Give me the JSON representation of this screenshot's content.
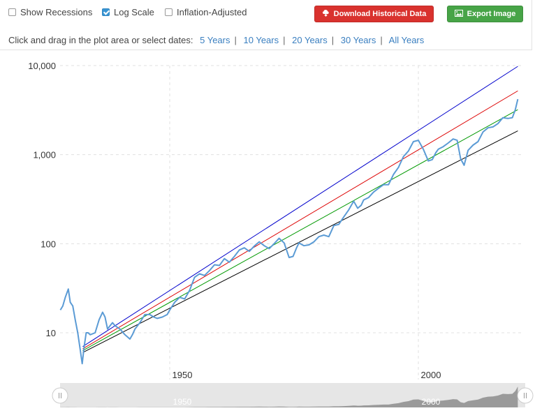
{
  "toolbar": {
    "show_recessions": "Show Recessions",
    "log_scale": "Log Scale",
    "inflation_adjusted": "Inflation-Adjusted",
    "download_label": "Download Historical Data",
    "export_label": "Export Image",
    "download_color": "#d9322e",
    "export_color": "#47a447"
  },
  "date_picker": {
    "prompt": "Click and drag in the plot area or select dates:",
    "ranges": [
      "5 Years",
      "10 Years",
      "20 Years",
      "30 Years",
      "All Years"
    ]
  },
  "icons": {
    "download": "cloud-download-icon",
    "export": "image-icon"
  },
  "chart_data": {
    "type": "line",
    "y_scale": "log",
    "ylim": [
      4,
      10000
    ],
    "xlim": [
      1928,
      2020
    ],
    "y_ticks": [
      10,
      100,
      1000,
      10000
    ],
    "y_tick_labels": [
      "10",
      "100",
      "1,000",
      "10,000"
    ],
    "x_ticks": [
      1950,
      2000
    ],
    "x_tick_labels": [
      "1950",
      "2000"
    ],
    "grid": true,
    "series": [
      {
        "color": "#5b9bd5",
        "x": [
          1928,
          1928.5,
          1929.0,
          1929.6,
          1930.0,
          1930.5,
          1931.0,
          1931.5,
          1932.0,
          1932.4,
          1932.8,
          1933.2,
          1933.6,
          1934.0,
          1935.0,
          1935.8,
          1936.5,
          1937.0,
          1937.5,
          1938.0,
          1938.5,
          1939.0,
          1940.0,
          1941.0,
          1942.0,
          1942.5,
          1943.0,
          1944.0,
          1945.0,
          1946.0,
          1946.8,
          1947.5,
          1948.5,
          1949.5,
          1950.0,
          1951.0,
          1952.0,
          1953.0,
          1954.0,
          1955.0,
          1956.0,
          1957.0,
          1958.0,
          1959.0,
          1960.0,
          1961.0,
          1962.0,
          1963.0,
          1964.0,
          1965.0,
          1966.0,
          1967.0,
          1968.0,
          1969.0,
          1970.0,
          1971.0,
          1972.0,
          1973.0,
          1974.0,
          1974.8,
          1975.5,
          1976.0,
          1977.0,
          1978.0,
          1979.0,
          1980.0,
          1981.0,
          1982.0,
          1983.0,
          1984.0,
          1985.0,
          1986.0,
          1987.0,
          1987.8,
          1988.5,
          1989.0,
          1990.0,
          1991.0,
          1992.0,
          1993.0,
          1994.0,
          1995.0,
          1996.0,
          1997.0,
          1998.0,
          1999.0,
          2000.0,
          2001.0,
          2002.0,
          2002.8,
          2003.5,
          2004.0,
          2005.0,
          2006.0,
          2007.0,
          2007.8,
          2008.5,
          2009.2,
          2010.0,
          2011.0,
          2012.0,
          2013.0,
          2014.0,
          2015.0,
          2016.0,
          2017.0,
          2018.0,
          2018.9,
          2019.5,
          2020.0
        ],
        "y": [
          18,
          20,
          25,
          31,
          22,
          20,
          14,
          10,
          6.5,
          4.5,
          7,
          10,
          10,
          9.5,
          10,
          14,
          17,
          15,
          11,
          12,
          13,
          12,
          11,
          9.5,
          8.5,
          9.5,
          11,
          13,
          16,
          16,
          15,
          14.5,
          15,
          16,
          18,
          22,
          25,
          24,
          30,
          42,
          46,
          44,
          50,
          58,
          57,
          68,
          62,
          72,
          85,
          90,
          82,
          94,
          105,
          95,
          88,
          100,
          115,
          102,
          70,
          72,
          90,
          102,
          95,
          97,
          105,
          120,
          125,
          120,
          160,
          165,
          200,
          240,
          300,
          250,
          270,
          310,
          330,
          380,
          420,
          460,
          460,
          600,
          720,
          950,
          1100,
          1400,
          1450,
          1150,
          850,
          880,
          1050,
          1150,
          1230,
          1350,
          1500,
          1450,
          900,
          760,
          1120,
          1280,
          1400,
          1800,
          2000,
          2050,
          2230,
          2600,
          2550,
          2600,
          3200,
          4200
        ]
      }
    ],
    "trend_lines": [
      {
        "color": "#0000cc",
        "x": [
          1932.5,
          2020
        ],
        "y": [
          7.0,
          9800
        ]
      },
      {
        "color": "#dd0000",
        "x": [
          1932.5,
          2020
        ],
        "y": [
          6.6,
          5200
        ]
      },
      {
        "color": "#009900",
        "x": [
          1932.5,
          2020
        ],
        "y": [
          6.3,
          3200
        ]
      },
      {
        "color": "#000000",
        "x": [
          1932.5,
          2020
        ],
        "y": [
          6.0,
          1850
        ]
      }
    ],
    "navigator": {
      "x_tick_labels": [
        "1950",
        "2000"
      ]
    }
  }
}
